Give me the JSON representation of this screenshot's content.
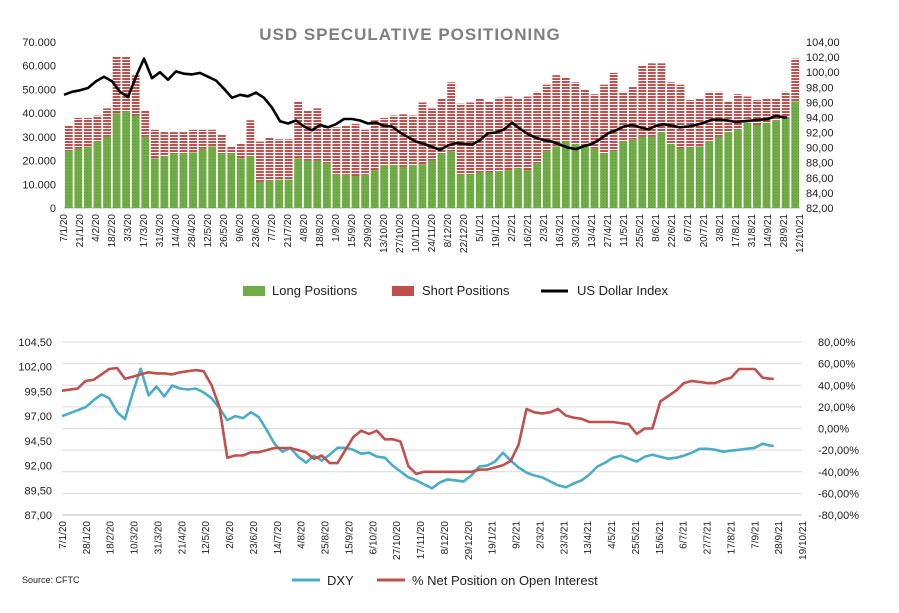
{
  "source": "Source: CFTC",
  "chart_data": [
    {
      "type": "bar",
      "title": "USD SPECULATIVE POSITIONING",
      "x_tick_labels": [
        "7/1/20",
        "21/1/20",
        "4/2/20",
        "18/2/20",
        "3/3/20",
        "17/3/20",
        "31/3/20",
        "14/4/20",
        "28/4/20",
        "12/5/20",
        "26/5/20",
        "9/6/20",
        "23/6/20",
        "7/7/20",
        "21/7/20",
        "4/8/20",
        "18/8/20",
        "1/9/20",
        "15/9/20",
        "29/9/20",
        "13/10/20",
        "27/10/20",
        "10/11/20",
        "24/11/20",
        "8/12/20",
        "22/12/20",
        "5/1/21",
        "19/1/21",
        "2/2/21",
        "16/2/21",
        "2/3/21",
        "16/3/21",
        "30/3/21",
        "13/4/21",
        "27/4/21",
        "11/5/21",
        "25/5/21",
        "8/6/21",
        "22/6/21",
        "6/7/21",
        "20/7/21",
        "3/8/21",
        "17/8/21",
        "31/8/21",
        "14/9/21",
        "28/9/21",
        "12/10/21"
      ],
      "y_left": {
        "ylim": [
          0,
          70000
        ],
        "tick_labels": [
          "0",
          "10.000",
          "20.000",
          "30.000",
          "40.000",
          "50.000",
          "60.000",
          "70.000"
        ]
      },
      "y_right": {
        "ylim": [
          82,
          104
        ],
        "tick_labels": [
          "82,00",
          "84,00",
          "86,00",
          "88,00",
          "90,00",
          "92,00",
          "94,00",
          "96,00",
          "98,00",
          "100,00",
          "102,00",
          "104,00"
        ]
      },
      "legend": [
        "Long Positions",
        "Short Positions",
        "US Dollar Index"
      ],
      "legend_position": "bottom",
      "colors": {
        "long": "#70ad47",
        "short": "#c0504d",
        "dxi": "#000000"
      },
      "series": [
        {
          "name": "Long Positions",
          "values": [
            24000,
            25000,
            26000,
            28000,
            30000,
            40000,
            41000,
            39000,
            30000,
            21000,
            22000,
            23000,
            23000,
            23500,
            25000,
            26000,
            23000,
            23000,
            21000,
            22000,
            11000,
            11500,
            12000,
            12000,
            21000,
            20000,
            20000,
            19000,
            14000,
            14000,
            13500,
            14000,
            16000,
            18000,
            18000,
            17500,
            18000,
            18500,
            20000,
            23000,
            24000,
            14000,
            14500,
            15000,
            15000,
            15500,
            16000,
            17000,
            16000,
            19000,
            24000,
            26000,
            28000,
            27000,
            26000,
            25000,
            23000,
            24000,
            28000,
            29000,
            30000,
            30000,
            32000,
            27000,
            25000,
            25500,
            26000,
            28000,
            30000,
            32000,
            33000,
            36000,
            35000,
            36000,
            37000,
            38000,
            45000
          ]
        },
        {
          "name": "Short Positions",
          "values": [
            11000,
            13000,
            12000,
            11000,
            12000,
            24000,
            23000,
            17000,
            11000,
            12000,
            10000,
            9000,
            9000,
            9500,
            8000,
            7000,
            8000,
            3000,
            6000,
            15000,
            17000,
            18000,
            17000,
            17000,
            24000,
            21000,
            22000,
            16000,
            20000,
            21000,
            22000,
            19000,
            21000,
            20000,
            21000,
            22000,
            21000,
            26000,
            22000,
            23000,
            29000,
            30000,
            30000,
            31000,
            30000,
            31000,
            31000,
            29000,
            31000,
            30000,
            28000,
            30000,
            27000,
            26000,
            24000,
            23000,
            29000,
            33000,
            21000,
            22000,
            30000,
            31000,
            29000,
            26000,
            27000,
            20000,
            20000,
            21000,
            19000,
            13000,
            15000,
            11000,
            10500,
            10000,
            9000,
            11000,
            18000
          ]
        },
        {
          "name": "US Dollar Index",
          "x": [
            0,
            0.5,
            1,
            1.5,
            2,
            2.5,
            3,
            3.5,
            4,
            4.5,
            5,
            5.5,
            6,
            6.5,
            7,
            7.5,
            8,
            8.5,
            9,
            9.5,
            10,
            10.5,
            11,
            11.5,
            12,
            12.5,
            13,
            13.5,
            14,
            14.5,
            15,
            15.5,
            16,
            16.5,
            17,
            17.5,
            18,
            18.5,
            19,
            19.5,
            20,
            20.5,
            21,
            21.5,
            22,
            22.5,
            23,
            23.5,
            24,
            24.5,
            25,
            25.5,
            26,
            26.5,
            27,
            27.5,
            28,
            28.5,
            29,
            29.5,
            30,
            30.5,
            31,
            31.5,
            32,
            32.5,
            33,
            33.5,
            34,
            34.5,
            35,
            35.5,
            36,
            36.5,
            37,
            37.5,
            38,
            38.5,
            39,
            39.5,
            40,
            40.5,
            41,
            41.5,
            42,
            42.5,
            43,
            43.5,
            44,
            44.5,
            45,
            45.2
          ],
          "values": [
            97.0,
            97.4,
            97.6,
            97.9,
            98.8,
            99.4,
            98.8,
            97.4,
            96.7,
            99.4,
            101.8,
            99.2,
            100.0,
            99.0,
            100.1,
            99.8,
            99.7,
            99.9,
            99.4,
            98.9,
            97.8,
            96.6,
            97.0,
            96.8,
            97.3,
            96.6,
            95.3,
            93.5,
            93.2,
            93.6,
            92.8,
            92.3,
            93.0,
            92.7,
            93.1,
            93.8,
            93.8,
            93.6,
            93.2,
            93.3,
            92.9,
            92.8,
            92.0,
            91.4,
            90.8,
            90.5,
            90.1,
            89.7,
            90.3,
            90.6,
            90.5,
            90.4,
            91.0,
            91.9,
            92.0,
            92.4,
            93.3,
            92.5,
            91.8,
            91.3,
            91.0,
            90.8,
            90.4,
            90.0,
            89.8,
            90.2,
            90.5,
            91.1,
            91.9,
            92.3,
            92.8,
            93.0,
            92.7,
            92.4,
            92.9,
            93.1,
            92.9,
            92.7,
            92.8,
            93.0,
            93.3,
            93.7,
            93.7,
            93.6,
            93.4,
            93.5,
            93.6,
            93.7,
            93.8,
            94.2,
            94.0,
            94.0
          ]
        }
      ]
    },
    {
      "type": "line",
      "x_tick_labels": [
        "7/1/20",
        "28/1/20",
        "18/2/20",
        "10/3/20",
        "31/3/20",
        "21/4/20",
        "12/5/20",
        "2/6/20",
        "23/6/20",
        "14/7/20",
        "4/8/20",
        "25/8/20",
        "15/9/20",
        "6/10/20",
        "27/10/20",
        "17/11/20",
        "8/12/20",
        "29/12/20",
        "19/1/21",
        "9/2/21",
        "2/3/21",
        "23/3/21",
        "13/4/21",
        "4/5/21",
        "25/5/21",
        "15/6/21",
        "6/7/21",
        "27/7/21",
        "17/8/21",
        "7/9/21",
        "28/9/21",
        "19/10/21"
      ],
      "y_left": {
        "ylim": [
          87.0,
          104.5
        ],
        "tick_labels": [
          "87,00",
          "89,50",
          "92,00",
          "94,50",
          "97,00",
          "99,50",
          "102,00",
          "104,50"
        ]
      },
      "y_right": {
        "ylim": [
          -80,
          80
        ],
        "tick_labels": [
          "-80,00%",
          "-60,00%",
          "-40,00%",
          "-20,00%",
          "0,00%",
          "20,00%",
          "40,00%",
          "60,00%",
          "80,00%"
        ]
      },
      "legend": [
        "DXY",
        "% Net Position on Open Interest"
      ],
      "legend_position": "bottom",
      "colors": {
        "dxy": "#4bacc6",
        "net": "#c0504d"
      },
      "series": [
        {
          "name": "DXY",
          "x": [
            0,
            0.5,
            1,
            1.5,
            2,
            2.5,
            3,
            3.5,
            4,
            4.5,
            5,
            5.5,
            6,
            6.5,
            7,
            7.5,
            8,
            8.5,
            9,
            9.5,
            10,
            10.5,
            11,
            11.5,
            12,
            12.5,
            13,
            13.5,
            14,
            14.5,
            15,
            15.5,
            16,
            16.5,
            17,
            17.5,
            18,
            18.5,
            19,
            19.5,
            20,
            20.5,
            21,
            21.5,
            22,
            22.5,
            23,
            23.5,
            24,
            24.5,
            25,
            25.5,
            26,
            26.5,
            27,
            27.5,
            28,
            28.5,
            29,
            29.5,
            30,
            30.5,
            31,
            31.5,
            32,
            32.5,
            33,
            33.5,
            34,
            34.5,
            35,
            35.5,
            36,
            36.5,
            37,
            37.5,
            38,
            38.5,
            39,
            39.5,
            40,
            40.5,
            41,
            41.5,
            42,
            42.5,
            43,
            43.5,
            44,
            44.5,
            45,
            45.2
          ],
          "values": [
            97.0,
            97.3,
            97.6,
            97.9,
            98.6,
            99.2,
            98.8,
            97.4,
            96.7,
            99.4,
            101.8,
            99.1,
            100.0,
            99.0,
            100.1,
            99.8,
            99.7,
            99.8,
            99.4,
            98.8,
            97.8,
            96.6,
            97.0,
            96.8,
            97.4,
            96.9,
            95.6,
            94.2,
            93.4,
            93.8,
            92.9,
            92.3,
            93.0,
            92.5,
            93.1,
            93.8,
            93.8,
            93.6,
            93.2,
            93.3,
            92.9,
            92.8,
            92.0,
            91.4,
            90.8,
            90.5,
            90.1,
            89.7,
            90.3,
            90.6,
            90.5,
            90.4,
            91.0,
            91.9,
            92.0,
            92.4,
            93.3,
            92.5,
            91.8,
            91.3,
            91.0,
            90.8,
            90.4,
            90.0,
            89.8,
            90.2,
            90.5,
            91.1,
            91.9,
            92.3,
            92.8,
            93.0,
            92.7,
            92.4,
            92.9,
            93.1,
            92.9,
            92.7,
            92.8,
            93.0,
            93.3,
            93.7,
            93.7,
            93.6,
            93.4,
            93.5,
            93.6,
            93.7,
            93.8,
            94.2,
            94.0,
            94.0
          ]
        },
        {
          "name": "% Net Position on Open Interest",
          "x": [
            0,
            0.5,
            1,
            1.5,
            2,
            2.5,
            3,
            3.5,
            4,
            4.5,
            5,
            5.5,
            6,
            6.5,
            7,
            7.5,
            8,
            8.5,
            9,
            9.5,
            10,
            10.5,
            11,
            11.5,
            12,
            12.5,
            13,
            13.5,
            14,
            14.5,
            15,
            15.5,
            16,
            16.5,
            17,
            17.5,
            18,
            18.5,
            19,
            19.5,
            20,
            20.5,
            21,
            21.5,
            22,
            22.5,
            23,
            23.5,
            24,
            24.5,
            25,
            25.5,
            26,
            26.5,
            27,
            27.5,
            28,
            28.5,
            29,
            29.5,
            30,
            30.5,
            31,
            31.5,
            32,
            32.5,
            33,
            33.5,
            34,
            34.5,
            35,
            35.5,
            36,
            36.5,
            37,
            37.5,
            38,
            38.5,
            39,
            39.5,
            40,
            40.5,
            41,
            41.5,
            42,
            42.5,
            43,
            43.5,
            44,
            44.5,
            45,
            45.2
          ],
          "values": [
            35,
            36,
            37,
            44,
            45,
            50,
            55,
            56,
            46,
            48,
            50,
            52,
            51,
            51,
            50,
            52,
            53,
            54,
            53,
            40,
            20,
            -27,
            -25,
            -25,
            -22,
            -22,
            -20,
            -18,
            -18,
            -18,
            -20,
            -22,
            -28,
            -25,
            -32,
            -32,
            -20,
            -8,
            -2,
            -5,
            -2,
            -10,
            -10,
            -12,
            -35,
            -42,
            -40,
            -40,
            -40,
            -40,
            -40,
            -40,
            -40,
            -38,
            -38,
            -36,
            -34,
            -30,
            -15,
            18,
            15,
            14,
            15,
            18,
            12,
            10,
            9,
            6,
            6,
            6,
            6,
            5,
            4,
            -5,
            0,
            0,
            25,
            30,
            35,
            42,
            44,
            43,
            42,
            42,
            45,
            47,
            55,
            55,
            55,
            47,
            46,
            46
          ]
        }
      ]
    }
  ]
}
